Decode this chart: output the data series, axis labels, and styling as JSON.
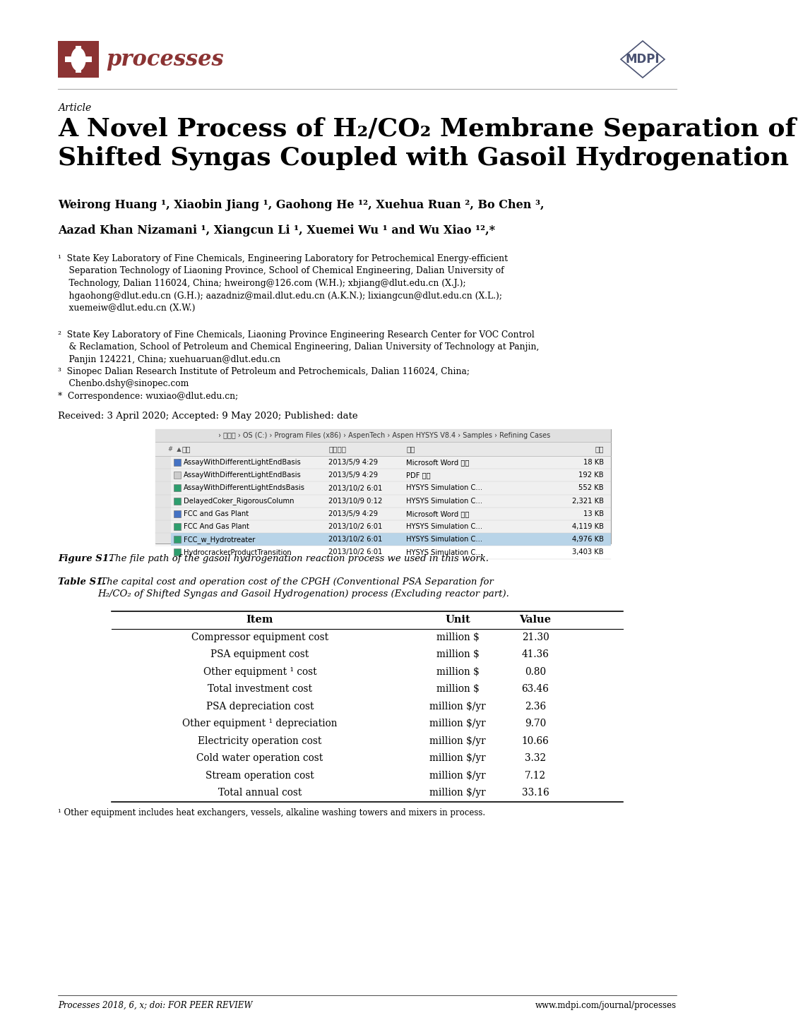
{
  "page_bg": "#ffffff",
  "logo_color": "#8B3333",
  "mdpi_color": "#4a5272",
  "title_article": "Article",
  "title_main": "A Novel Process of H₂/CO₂ Membrane Separation of\nShifted Syngas Coupled with Gasoil Hydrogenation",
  "authors_line1": "Weirong Huang ¹, Xiaobin Jiang ¹, Gaohong He ¹², Xuehua Ruan ², Bo Chen ³,",
  "authors_line2": "Aazad Khan Nizamani ¹, Xiangcun Li ¹, Xuemei Wu ¹ and Wu Xiao ¹²,*",
  "affil1": "¹  State Key Laboratory of Fine Chemicals, Engineering Laboratory for Petrochemical Energy-efficient\n    Separation Technology of Liaoning Province, School of Chemical Engineering, Dalian University of\n    Technology, Dalian 116024, China; hweirong@126.com (W.H.); xbjiang@dlut.edu.cn (X.J.);\n    hgaohong@dlut.edu.cn (G.H.); aazadniz@mail.dlut.edu.cn (A.K.N.); lixiangcun@dlut.edu.cn (X.L.);\n    xuemeiw@dlut.edu.cn (X.W.)",
  "affil2": "²  State Key Laboratory of Fine Chemicals, Liaoning Province Engineering Research Center for VOC Control\n    & Reclamation, School of Petroleum and Chemical Engineering, Dalian University of Technology at Panjin,\n    Panjin 124221, China; xuehuaruan@dlut.edu.cn",
  "affil3": "³  Sinopec Dalian Research Institute of Petroleum and Petrochemicals, Dalian 116024, China;\n    Chenbo.dshy@sinopec.com",
  "affil4": "*  Correspondence: wuxiao@dlut.edu.cn;",
  "received": "Received: 3 April 2020; Accepted: 9 May 2020; Published: date",
  "fig_caption_bold": "Figure S1.",
  "fig_caption_rest": " The file path of the gasoil hydrogenation reaction process we used in this work.",
  "table_caption_bold": "Table S1.",
  "table_caption_rest": " The capital cost and operation cost of the CPGH (Conventional PSA Separation for\nH₂/CO₂ of Shifted Syngas and Gasoil Hydrogenation) process (Excluding reactor part).",
  "table_headers": [
    "Item",
    "Unit",
    "Value"
  ],
  "table_rows": [
    [
      "Compressor equipment cost",
      "million $",
      "21.30"
    ],
    [
      "PSA equipment cost",
      "million $",
      "41.36"
    ],
    [
      "Other equipment ¹ cost",
      "million $",
      "0.80"
    ],
    [
      "Total investment cost",
      "million $",
      "63.46"
    ],
    [
      "PSA depreciation cost",
      "million $/yr",
      "2.36"
    ],
    [
      "Other equipment ¹ depreciation",
      "million $/yr",
      "9.70"
    ],
    [
      "Electricity operation cost",
      "million $/yr",
      "10.66"
    ],
    [
      "Cold water operation cost",
      "million $/yr",
      "3.32"
    ],
    [
      "Stream operation cost",
      "million $/yr",
      "7.12"
    ],
    [
      "Total annual cost",
      "million $/yr",
      "33.16"
    ]
  ],
  "table_footnote": "¹ Other equipment includes heat exchangers, vessels, alkaline washing towers and mixers in process.",
  "footer_left": "Processes 2018, 6, x; doi: FOR PEER REVIEW",
  "footer_right": "www.mdpi.com/journal/processes",
  "file_browser": {
    "path": " › 起始页 › OS (C:) › Program Files (x86) › AspenTech › Aspen HYSYS V8.4 › Samples › Refining Cases",
    "col_headers": [
      "名称",
      "修改日期",
      "类型",
      "大小"
    ],
    "files": [
      [
        "AssayWithDifferentLightEndBasis",
        "2013/5/9 4:29",
        "Microsoft Word 文件",
        "18 KB",
        "word",
        false
      ],
      [
        "AssayWithDifferentLightEndBasis",
        "2013/5/9 4:29",
        "PDF 文件",
        "192 KB",
        "pdf",
        false
      ],
      [
        "AssayWithDifferentLightEndsBasis",
        "2013/10/2 6:01",
        "HYSYS Simulation C...",
        "552 KB",
        "hysys",
        false
      ],
      [
        "DelayedCoker_RigorousColumn",
        "2013/10/9 0:12",
        "HYSYS Simulation C...",
        "2,321 KB",
        "hysys",
        false
      ],
      [
        "FCC and Gas Plant",
        "2013/5/9 4:29",
        "Microsoft Word 文件",
        "13 KB",
        "word",
        false
      ],
      [
        "FCC And Gas Plant",
        "2013/10/2 6:01",
        "HYSYS Simulation C...",
        "4,119 KB",
        "hysys",
        false
      ],
      [
        "FCC_w_Hydrotreater",
        "2013/10/2 6:01",
        "HYSYS Simulation C...",
        "4,976 KB",
        "hysys",
        true
      ],
      [
        "HydrocrackerProductTransition",
        "2013/10/2 6:01",
        "HYSYS Simulation C...",
        "3,403 KB",
        "hysys",
        false
      ]
    ]
  }
}
